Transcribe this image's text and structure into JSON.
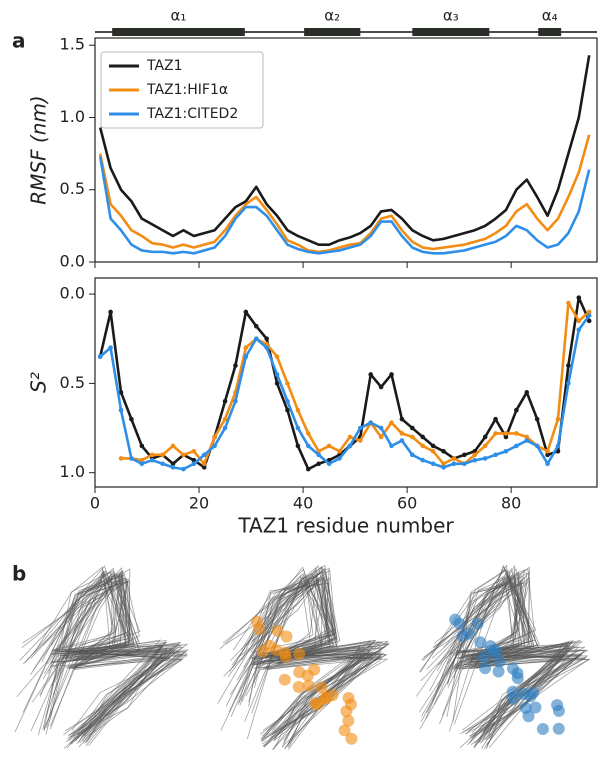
{
  "panel_labels": [
    "a",
    "b"
  ],
  "secondary_structure": [
    {
      "label": "α₁",
      "start": 3.3,
      "end": 28.8
    },
    {
      "label": "α₂",
      "start": 40.2,
      "end": 51
    },
    {
      "label": "α₃",
      "start": 61,
      "end": 75.8
    },
    {
      "label": "α₄",
      "start": 85.2,
      "end": 89.6
    }
  ],
  "chart_data": [
    {
      "type": "line",
      "ylabel": "RMSF (nm)",
      "xlim": [
        0,
        96.5
      ],
      "ylim": [
        0,
        1.55
      ],
      "xticks": [
        0,
        20,
        40,
        60,
        80
      ],
      "show_xtick_labels": false,
      "yticks": [
        {
          "value": 0,
          "label": "0.0"
        },
        {
          "value": 0.5,
          "label": "0.5"
        },
        {
          "value": 1,
          "label": "1.0"
        },
        {
          "value": 1.5,
          "label": "1.5"
        }
      ],
      "legend": "upper-left",
      "x": [
        1,
        3,
        5,
        7,
        9,
        11,
        13,
        15,
        17,
        19,
        21,
        23,
        25,
        27,
        29,
        31,
        33,
        35,
        37,
        39,
        41,
        43,
        45,
        47,
        49,
        51,
        53,
        55,
        57,
        59,
        61,
        63,
        65,
        67,
        69,
        71,
        73,
        75,
        77,
        79,
        81,
        83,
        85,
        87,
        89,
        91,
        93,
        95
      ],
      "series": [
        {
          "name": "TAZ1",
          "color": "#1a1a1a",
          "values": [
            0.93,
            0.65,
            0.5,
            0.42,
            0.3,
            0.26,
            0.22,
            0.18,
            0.22,
            0.18,
            0.2,
            0.22,
            0.3,
            0.38,
            0.42,
            0.52,
            0.4,
            0.32,
            0.22,
            0.18,
            0.15,
            0.12,
            0.12,
            0.15,
            0.17,
            0.2,
            0.25,
            0.35,
            0.36,
            0.3,
            0.22,
            0.18,
            0.15,
            0.16,
            0.18,
            0.2,
            0.22,
            0.25,
            0.3,
            0.36,
            0.5,
            0.57,
            0.45,
            0.32,
            0.5,
            0.75,
            1.0,
            1.43
          ]
        },
        {
          "name": "TAZ1:HIF1α",
          "color": "#f28c13",
          "values": [
            0.75,
            0.4,
            0.32,
            0.22,
            0.18,
            0.13,
            0.12,
            0.1,
            0.12,
            0.1,
            0.12,
            0.14,
            0.22,
            0.32,
            0.4,
            0.45,
            0.36,
            0.26,
            0.15,
            0.12,
            0.08,
            0.07,
            0.08,
            0.1,
            0.12,
            0.13,
            0.2,
            0.3,
            0.32,
            0.22,
            0.14,
            0.1,
            0.09,
            0.1,
            0.11,
            0.12,
            0.14,
            0.16,
            0.2,
            0.25,
            0.35,
            0.4,
            0.3,
            0.22,
            0.3,
            0.45,
            0.62,
            0.88
          ]
        },
        {
          "name": "TAZ1:CITED2",
          "color": "#2f8ee8",
          "values": [
            0.73,
            0.3,
            0.22,
            0.12,
            0.08,
            0.07,
            0.07,
            0.06,
            0.07,
            0.06,
            0.08,
            0.1,
            0.18,
            0.3,
            0.38,
            0.38,
            0.32,
            0.22,
            0.12,
            0.09,
            0.07,
            0.06,
            0.07,
            0.08,
            0.1,
            0.12,
            0.18,
            0.28,
            0.28,
            0.18,
            0.1,
            0.07,
            0.06,
            0.06,
            0.07,
            0.08,
            0.1,
            0.12,
            0.14,
            0.18,
            0.25,
            0.22,
            0.15,
            0.1,
            0.12,
            0.2,
            0.35,
            0.64
          ]
        }
      ]
    },
    {
      "type": "line",
      "ylabel": "S²",
      "xlabel": "TAZ1 residue number",
      "xlim": [
        0,
        96.5
      ],
      "ylim": [
        -0.09,
        1.08
      ],
      "invert_y": true,
      "xticks": [
        0,
        20,
        40,
        60,
        80
      ],
      "show_xtick_labels": true,
      "markers": true,
      "yticks": [
        {
          "value": 0,
          "label": "0.0"
        },
        {
          "value": 0.5,
          "label": "0.5"
        },
        {
          "value": 1,
          "label": "1.0"
        }
      ],
      "x": [
        1,
        3,
        5,
        7,
        9,
        11,
        13,
        15,
        17,
        19,
        21,
        23,
        25,
        27,
        29,
        31,
        33,
        35,
        37,
        39,
        41,
        43,
        45,
        47,
        49,
        51,
        53,
        55,
        57,
        59,
        61,
        63,
        65,
        67,
        69,
        71,
        73,
        75,
        77,
        79,
        81,
        83,
        85,
        87,
        89,
        91,
        93,
        95
      ],
      "series": [
        {
          "name": "TAZ1",
          "color": "#1a1a1a",
          "values": [
            0.35,
            0.1,
            0.55,
            0.7,
            0.85,
            0.92,
            0.9,
            0.95,
            0.9,
            0.93,
            0.97,
            0.8,
            0.6,
            0.4,
            0.1,
            0.18,
            0.25,
            0.5,
            0.65,
            0.85,
            0.98,
            0.95,
            0.93,
            0.9,
            0.85,
            0.8,
            0.45,
            0.52,
            0.45,
            0.7,
            0.75,
            0.8,
            0.85,
            0.88,
            0.92,
            0.9,
            0.88,
            0.8,
            0.7,
            0.8,
            0.65,
            0.55,
            0.7,
            0.9,
            0.88,
            0.4,
            0.02,
            0.15
          ]
        },
        {
          "name": "TAZ1:HIF1α",
          "color": "#f28c13",
          "values": [
            null,
            null,
            0.92,
            0.92,
            0.93,
            0.9,
            0.9,
            0.85,
            0.9,
            0.88,
            0.95,
            0.8,
            0.7,
            0.55,
            0.3,
            0.25,
            0.28,
            0.35,
            0.5,
            0.65,
            0.78,
            0.88,
            0.85,
            0.88,
            0.8,
            0.82,
            0.72,
            0.8,
            0.72,
            0.78,
            0.8,
            0.85,
            0.88,
            0.95,
            0.92,
            0.95,
            0.9,
            0.85,
            0.78,
            0.78,
            0.78,
            0.8,
            0.85,
            0.88,
            0.7,
            0.05,
            0.15,
            0.1
          ]
        },
        {
          "name": "TAZ1:CITED2",
          "color": "#2f8ee8",
          "values": [
            0.35,
            0.3,
            0.65,
            0.92,
            0.95,
            0.93,
            0.95,
            0.97,
            0.98,
            0.95,
            0.9,
            0.85,
            0.75,
            0.6,
            0.35,
            0.25,
            0.3,
            0.45,
            0.6,
            0.75,
            0.85,
            0.9,
            0.95,
            0.92,
            0.85,
            0.75,
            0.72,
            0.75,
            0.85,
            0.82,
            0.9,
            0.93,
            0.95,
            0.97,
            0.95,
            0.95,
            0.93,
            0.92,
            0.9,
            0.88,
            0.85,
            0.82,
            0.85,
            0.95,
            0.85,
            0.5,
            0.2,
            0.12
          ]
        }
      ]
    }
  ]
}
